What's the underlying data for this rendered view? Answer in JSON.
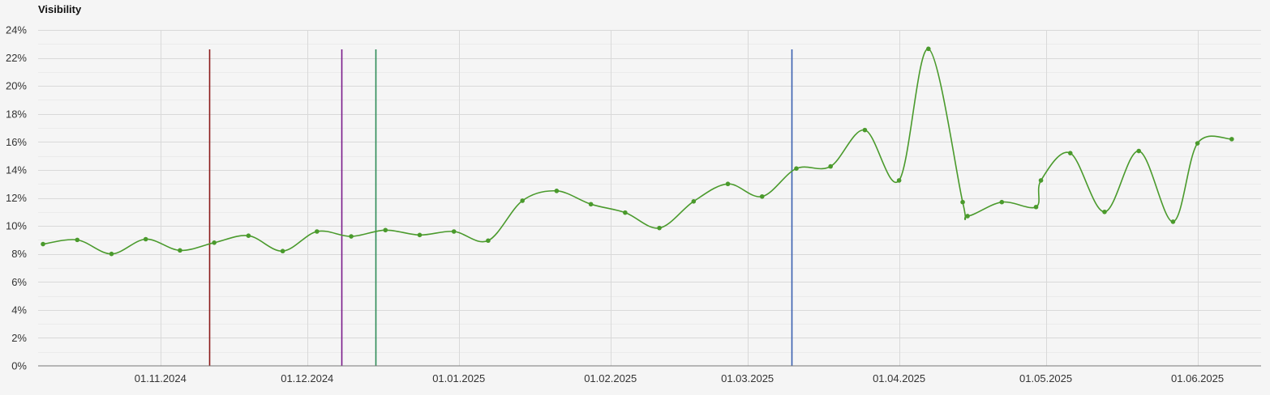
{
  "chart_data": {
    "type": "line",
    "title": "Visibility",
    "xlabel": "",
    "ylabel": "",
    "y_unit": "%",
    "ylim": [
      0,
      24
    ],
    "y_ticks": [
      {
        "value": 0,
        "label": "0%"
      },
      {
        "value": 2,
        "label": "2%"
      },
      {
        "value": 4,
        "label": "4%"
      },
      {
        "value": 6,
        "label": "6%"
      },
      {
        "value": 8,
        "label": "8%"
      },
      {
        "value": 10,
        "label": "10%"
      },
      {
        "value": 12,
        "label": "12%"
      },
      {
        "value": 14,
        "label": "14%"
      },
      {
        "value": 16,
        "label": "16%"
      },
      {
        "value": 18,
        "label": "18%"
      },
      {
        "value": 20,
        "label": "20%"
      },
      {
        "value": 22,
        "label": "22%"
      },
      {
        "value": 24,
        "label": "24%"
      }
    ],
    "xlim": [
      "2024-10-07",
      "2025-06-14"
    ],
    "x_ticks": [
      {
        "date": "2024-11-01",
        "label": "01.11.2024"
      },
      {
        "date": "2024-12-01",
        "label": "01.12.2024"
      },
      {
        "date": "2025-01-01",
        "label": "01.01.2025"
      },
      {
        "date": "2025-02-01",
        "label": "01.02.2025"
      },
      {
        "date": "2025-03-01",
        "label": "01.03.2025"
      },
      {
        "date": "2025-04-01",
        "label": "01.04.2025"
      },
      {
        "date": "2025-05-01",
        "label": "01.05.2025"
      },
      {
        "date": "2025-06-01",
        "label": "01.06.2025"
      }
    ],
    "grid": true,
    "series": [
      {
        "color": "#4a9a2c",
        "smooth": true,
        "points": [
          {
            "x": "2024-10-08",
            "y": 8.7
          },
          {
            "x": "2024-10-15",
            "y": 9.0
          },
          {
            "x": "2024-10-22",
            "y": 8.0
          },
          {
            "x": "2024-10-29",
            "y": 9.05
          },
          {
            "x": "2024-11-05",
            "y": 8.25
          },
          {
            "x": "2024-11-12",
            "y": 8.8
          },
          {
            "x": "2024-11-19",
            "y": 9.3
          },
          {
            "x": "2024-11-26",
            "y": 8.2
          },
          {
            "x": "2024-12-03",
            "y": 9.6
          },
          {
            "x": "2024-12-10",
            "y": 9.25
          },
          {
            "x": "2024-12-17",
            "y": 9.7
          },
          {
            "x": "2024-12-24",
            "y": 9.35
          },
          {
            "x": "2024-12-31",
            "y": 9.6
          },
          {
            "x": "2025-01-07",
            "y": 8.95
          },
          {
            "x": "2025-01-14",
            "y": 11.8
          },
          {
            "x": "2025-01-21",
            "y": 12.5
          },
          {
            "x": "2025-01-28",
            "y": 11.55
          },
          {
            "x": "2025-02-04",
            "y": 10.95
          },
          {
            "x": "2025-02-11",
            "y": 9.85
          },
          {
            "x": "2025-02-18",
            "y": 11.75
          },
          {
            "x": "2025-02-25",
            "y": 13.0
          },
          {
            "x": "2025-03-04",
            "y": 12.1
          },
          {
            "x": "2025-03-11",
            "y": 14.1
          },
          {
            "x": "2025-03-18",
            "y": 14.25
          },
          {
            "x": "2025-03-25",
            "y": 16.85
          },
          {
            "x": "2025-04-01",
            "y": 13.25
          },
          {
            "x": "2025-04-07",
            "y": 22.65
          },
          {
            "x": "2025-04-14",
            "y": 11.7
          },
          {
            "x": "2025-04-15",
            "y": 10.7
          },
          {
            "x": "2025-04-22",
            "y": 11.7
          },
          {
            "x": "2025-04-29",
            "y": 11.35
          },
          {
            "x": "2025-04-30",
            "y": 13.25
          },
          {
            "x": "2025-05-06",
            "y": 15.2
          },
          {
            "x": "2025-05-13",
            "y": 11.0
          },
          {
            "x": "2025-05-20",
            "y": 15.35
          },
          {
            "x": "2025-05-27",
            "y": 10.3
          },
          {
            "x": "2025-06-01",
            "y": 15.9
          },
          {
            "x": "2025-06-08",
            "y": 16.2
          }
        ]
      }
    ],
    "event_lines": [
      {
        "x": "2024-11-11",
        "color": "#8b1a1a"
      },
      {
        "x": "2024-12-08",
        "color": "#7a1a8a"
      },
      {
        "x": "2024-12-15",
        "color": "#2e8b57"
      },
      {
        "x": "2025-03-10",
        "color": "#3a5fb0"
      }
    ]
  }
}
